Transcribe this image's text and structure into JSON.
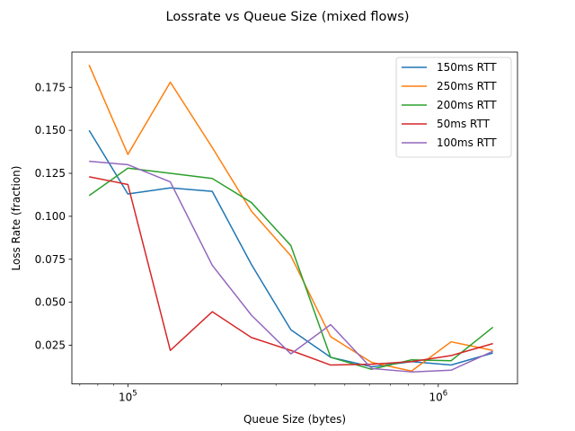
{
  "chart_data": {
    "type": "line",
    "title": "Lossrate vs Queue Size (mixed flows)",
    "xlabel": "Queue Size (bytes)",
    "ylabel": "Loss Rate (fraction)",
    "xscale": "log",
    "xlim": [
      66000,
      1800000
    ],
    "ylim": [
      0.0025,
      0.1955
    ],
    "x": [
      75000,
      100000,
      137000,
      187000,
      250000,
      335000,
      450000,
      610000,
      820000,
      1100000,
      1500000
    ],
    "xticks": [
      {
        "value": 100000,
        "base": "10",
        "exp": "5"
      },
      {
        "value": 1000000,
        "base": "10",
        "exp": "6"
      }
    ],
    "yticks": [
      0.025,
      0.05,
      0.075,
      0.1,
      0.125,
      0.15,
      0.175
    ],
    "ytick_labels": [
      "0.025",
      "0.050",
      "0.075",
      "0.100",
      "0.125",
      "0.150",
      "0.175"
    ],
    "legend_position": "top-right",
    "series": [
      {
        "name": "150ms RTT",
        "color": "#1f77b4",
        "values": [
          0.15,
          0.113,
          0.1165,
          0.1145,
          0.072,
          0.034,
          0.018,
          0.0125,
          0.0155,
          0.0135,
          0.0205
        ]
      },
      {
        "name": "250ms RTT",
        "color": "#ff7f0e",
        "values": [
          0.188,
          0.136,
          0.178,
          0.14,
          0.103,
          0.077,
          0.03,
          0.015,
          0.01,
          0.027,
          0.022
        ]
      },
      {
        "name": "200ms RTT",
        "color": "#2ca02c",
        "values": [
          0.112,
          0.128,
          0.125,
          0.122,
          0.108,
          0.083,
          0.018,
          0.011,
          0.0165,
          0.016,
          0.0355
        ]
      },
      {
        "name": "50ms RTT",
        "color": "#d62728",
        "values": [
          0.123,
          0.1185,
          0.022,
          0.0445,
          0.0295,
          0.022,
          0.0135,
          0.014,
          0.0155,
          0.019,
          0.026
        ]
      },
      {
        "name": "100ms RTT",
        "color": "#9467bd",
        "values": [
          0.132,
          0.13,
          0.12,
          0.0715,
          0.0425,
          0.02,
          0.037,
          0.0115,
          0.0095,
          0.0105,
          0.0215
        ]
      }
    ]
  }
}
